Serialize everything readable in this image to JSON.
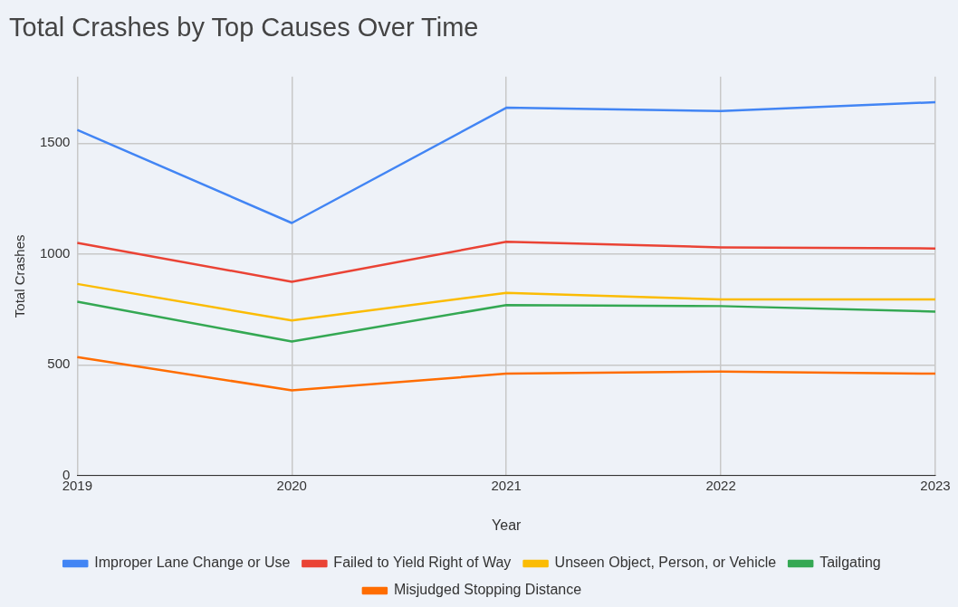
{
  "chart_data": {
    "type": "line",
    "title": "Total Crashes by Top Causes Over Time",
    "xlabel": "Year",
    "ylabel": "Total Crashes",
    "categories": [
      "2019",
      "2020",
      "2021",
      "2022",
      "2023"
    ],
    "series": [
      {
        "name": "Improper Lane Change or Use",
        "color": "#4285f4",
        "values": [
          1560,
          1140,
          1660,
          1645,
          1685
        ]
      },
      {
        "name": "Failed to Yield Right of Way",
        "color": "#ea4335",
        "values": [
          1050,
          875,
          1055,
          1030,
          1025
        ]
      },
      {
        "name": "Unseen Object, Person, or Vehicle",
        "color": "#fbbc04",
        "values": [
          865,
          700,
          825,
          795,
          795
        ]
      },
      {
        "name": "Tailgating",
        "color": "#34a853",
        "values": [
          785,
          605,
          770,
          765,
          740
        ]
      },
      {
        "name": "Misjudged Stopping Distance",
        "color": "#ff6d01",
        "values": [
          535,
          385,
          460,
          470,
          460
        ]
      }
    ],
    "ylim": [
      0,
      1800
    ],
    "yticks": [
      0,
      500,
      1000,
      1500
    ],
    "grid": true,
    "legend": "bottom",
    "marker": "none",
    "line_style": "solid"
  }
}
